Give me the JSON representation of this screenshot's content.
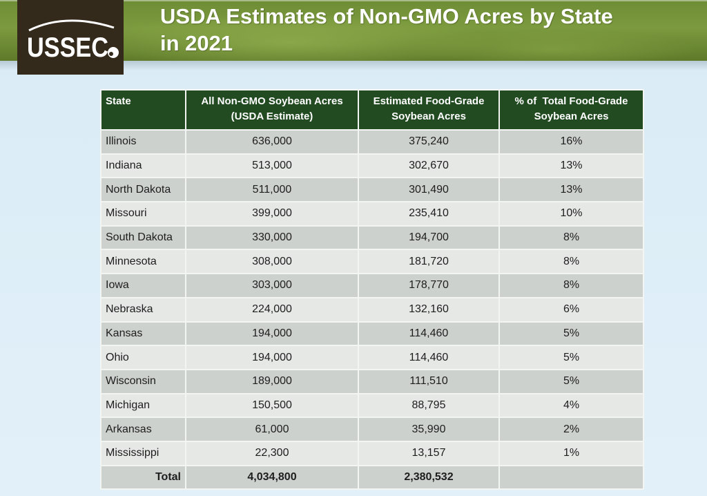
{
  "header": {
    "logo_text": "USSEC",
    "title_line1": "USDA Estimates of Non-GMO Acres by State",
    "title_line2": "in 2021"
  },
  "table": {
    "columns": [
      "State",
      "All Non-GMO Soybean Acres (USDA Estimate)",
      "Estimated Food-Grade Soybean Acres",
      "% of  Total Food-Grade Soybean Acres"
    ],
    "column_lines": [
      [
        "State"
      ],
      [
        "All Non-GMO Soybean Acres",
        "(USDA Estimate)"
      ],
      [
        "Estimated Food-Grade",
        "Soybean Acres"
      ],
      [
        "% of  Total Food-Grade",
        "Soybean Acres"
      ]
    ],
    "rows": [
      {
        "state": "Illinois",
        "non_gmo_acres": "636,000",
        "food_grade_acres": "375,240",
        "pct_food_grade": "16%"
      },
      {
        "state": "Indiana",
        "non_gmo_acres": "513,000",
        "food_grade_acres": "302,670",
        "pct_food_grade": "13%"
      },
      {
        "state": "North Dakota",
        "non_gmo_acres": "511,000",
        "food_grade_acres": "301,490",
        "pct_food_grade": "13%"
      },
      {
        "state": "Missouri",
        "non_gmo_acres": "399,000",
        "food_grade_acres": "235,410",
        "pct_food_grade": "10%"
      },
      {
        "state": "South Dakota",
        "non_gmo_acres": "330,000",
        "food_grade_acres": "194,700",
        "pct_food_grade": "8%"
      },
      {
        "state": "Minnesota",
        "non_gmo_acres": "308,000",
        "food_grade_acres": "181,720",
        "pct_food_grade": "8%"
      },
      {
        "state": "Iowa",
        "non_gmo_acres": "303,000",
        "food_grade_acres": "178,770",
        "pct_food_grade": "8%"
      },
      {
        "state": "Nebraska",
        "non_gmo_acres": "224,000",
        "food_grade_acres": "132,160",
        "pct_food_grade": "6%"
      },
      {
        "state": "Kansas",
        "non_gmo_acres": "194,000",
        "food_grade_acres": "114,460",
        "pct_food_grade": "5%"
      },
      {
        "state": "Ohio",
        "non_gmo_acres": "194,000",
        "food_grade_acres": "114,460",
        "pct_food_grade": "5%"
      },
      {
        "state": "Wisconsin",
        "non_gmo_acres": "189,000",
        "food_grade_acres": "111,510",
        "pct_food_grade": "5%"
      },
      {
        "state": "Michigan",
        "non_gmo_acres": "150,500",
        "food_grade_acres": "88,795",
        "pct_food_grade": "4%"
      },
      {
        "state": "Arkansas",
        "non_gmo_acres": "61,000",
        "food_grade_acres": "35,990",
        "pct_food_grade": "2%"
      },
      {
        "state": "Mississippi",
        "non_gmo_acres": "22,300",
        "food_grade_acres": "13,157",
        "pct_food_grade": "1%"
      }
    ],
    "total": {
      "label": "Total",
      "non_gmo_acres": "4,034,800",
      "food_grade_acres": "2,380,532",
      "pct_food_grade": ""
    }
  },
  "colors": {
    "banner_green": "#7c9a3e",
    "header_green": "#224b22",
    "row_dark": "#cdd1cd",
    "row_light": "#e6e8e6",
    "logo_bg": "#342a1c"
  }
}
